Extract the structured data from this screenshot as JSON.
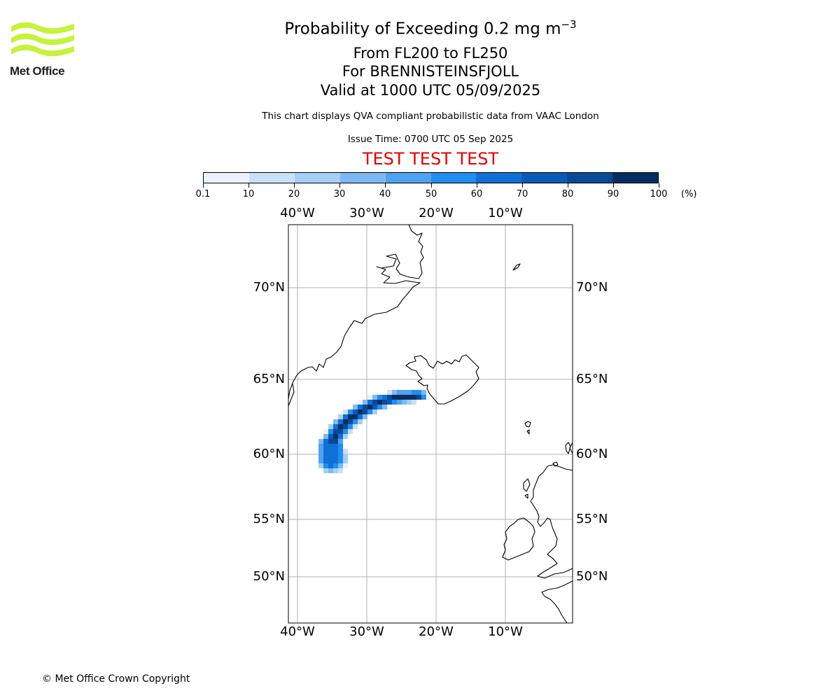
{
  "logo": {
    "text": "Met Office",
    "color": "#c6f23a"
  },
  "header": {
    "title": "Probability of Exceeding 0.2 mg m",
    "title_exp": "−3",
    "levels": "From FL200 to FL250",
    "volcano": "For BRENNISTEINSFJOLL",
    "valid": "Valid at 1000 UTC 05/09/2025",
    "info": "This chart displays QVA compliant probabilistic data from VAAC London",
    "issue": "Issue Time: 0700 UTC 05 Sep 2025",
    "test_banner": "TEST TEST TEST"
  },
  "colorbar": {
    "ticks": [
      "0.1",
      "10",
      "20",
      "30",
      "40",
      "50",
      "60",
      "70",
      "80",
      "90",
      "100"
    ],
    "unit": "(%)",
    "colors": [
      "#eaf3fd",
      "#c8e1fa",
      "#a6cff7",
      "#7dbaf4",
      "#4fa2f0",
      "#238df0",
      "#1070d6",
      "#0a5bb8",
      "#084a96",
      "#052f63"
    ]
  },
  "map": {
    "lon_labels": [
      "40°W",
      "30°W",
      "20°W",
      "10°W"
    ],
    "lat_labels": [
      "70°N",
      "65°N",
      "60°N",
      "55°N",
      "50°N"
    ],
    "gridline_color": "#b0b0b0"
  },
  "footer": {
    "copyright": "© Met Office Crown Copyright"
  }
}
